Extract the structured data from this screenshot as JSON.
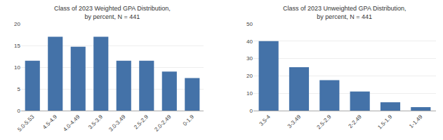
{
  "chart_data": [
    {
      "type": "bar",
      "title": "Class of 2023 Weighted GPA Distribution,\nby percent, N = 441",
      "categories": [
        "5.0-5.53",
        "4.5-4.9",
        "4.0-4.49",
        "3.5-3.9",
        "3.0-3.49",
        "2.5-2.9",
        "2.0-2.49",
        "0-1.9"
      ],
      "values": [
        11.5,
        17.0,
        14.7,
        17.0,
        11.5,
        11.5,
        9.0,
        7.5
      ],
      "color": "#4472a8",
      "ylim": [
        0,
        20
      ],
      "yticks": [
        0,
        5,
        10,
        15,
        20
      ],
      "grid": true
    },
    {
      "type": "bar",
      "title": "Class of 2023 Unweighted GPA Distribution,\nby percent, N = 441",
      "categories": [
        "3.5-4",
        "3-3.49",
        "2.5-2.9",
        "2-2.49",
        "1.5-1.9",
        "1-1.49"
      ],
      "values": [
        40.0,
        25.0,
        17.5,
        11.0,
        4.8,
        2.0
      ],
      "color": "#4472a8",
      "ylim": [
        0,
        50
      ],
      "yticks": [
        0,
        10,
        20,
        30,
        40,
        50
      ],
      "grid": true
    }
  ]
}
